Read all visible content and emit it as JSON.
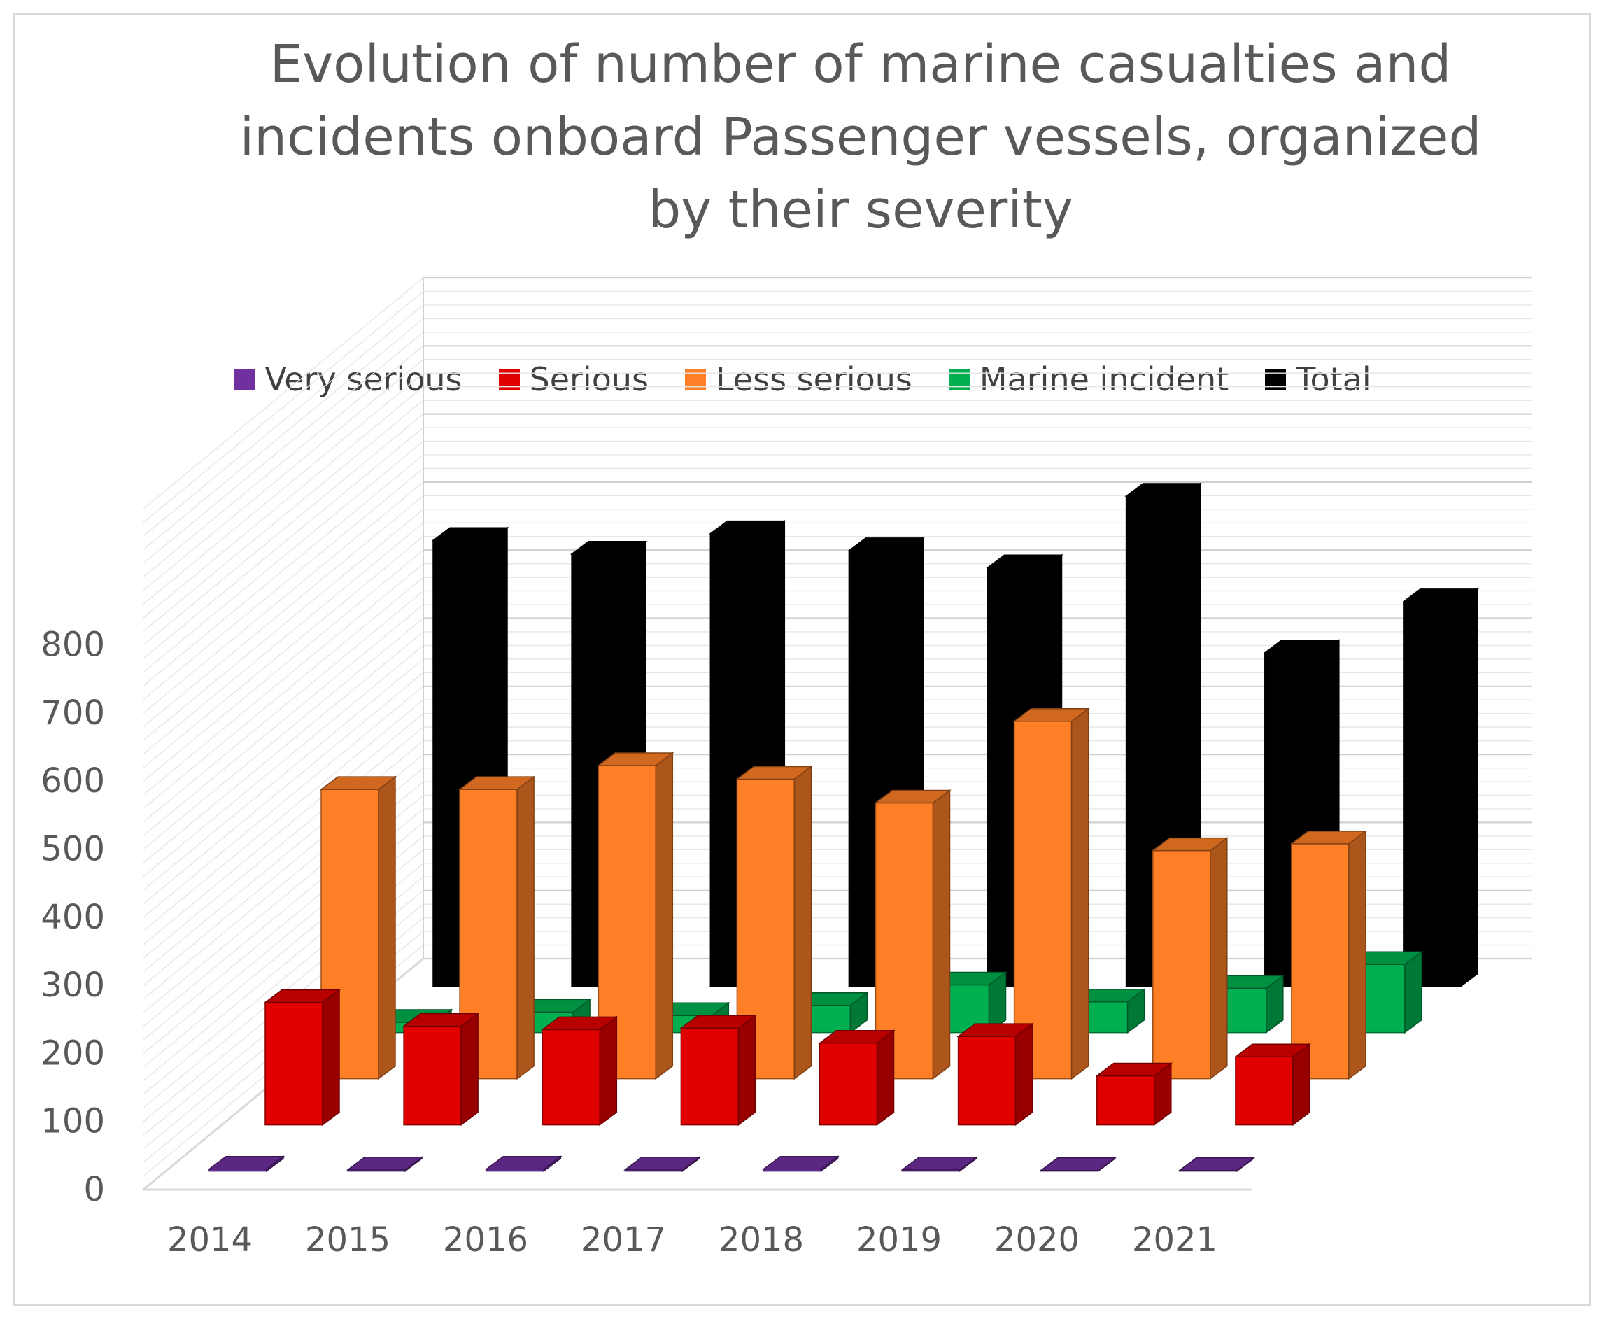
{
  "chart_data": {
    "type": "bar",
    "title": "Evolution of number of marine casualties and incidents onboard Passenger vessels, organized by their severity",
    "categories": [
      "2014",
      "2015",
      "2016",
      "2017",
      "2018",
      "2019",
      "2020",
      "2021"
    ],
    "series": [
      {
        "name": "Very serious",
        "color": "#7030a0",
        "values": [
          3,
          2,
          3,
          2,
          3,
          2,
          1,
          1
        ]
      },
      {
        "name": "Serious",
        "color": "#e00000",
        "values": [
          180,
          145,
          140,
          142,
          120,
          130,
          72,
          100
        ]
      },
      {
        "name": "Less serious",
        "color": "#ff7f27",
        "values": [
          425,
          425,
          460,
          440,
          405,
          525,
          335,
          345
        ]
      },
      {
        "name": "Marine incident",
        "color": "#00b050",
        "values": [
          15,
          30,
          25,
          40,
          70,
          45,
          65,
          100
        ]
      },
      {
        "name": "Total",
        "color": "#000000",
        "values": [
          655,
          635,
          665,
          640,
          615,
          720,
          490,
          565
        ]
      }
    ],
    "yticks": [
      "0",
      "100",
      "200",
      "300",
      "400",
      "500",
      "600",
      "700",
      "800"
    ],
    "ylim": [
      0,
      800
    ],
    "grid": true,
    "legend_position": "top"
  }
}
